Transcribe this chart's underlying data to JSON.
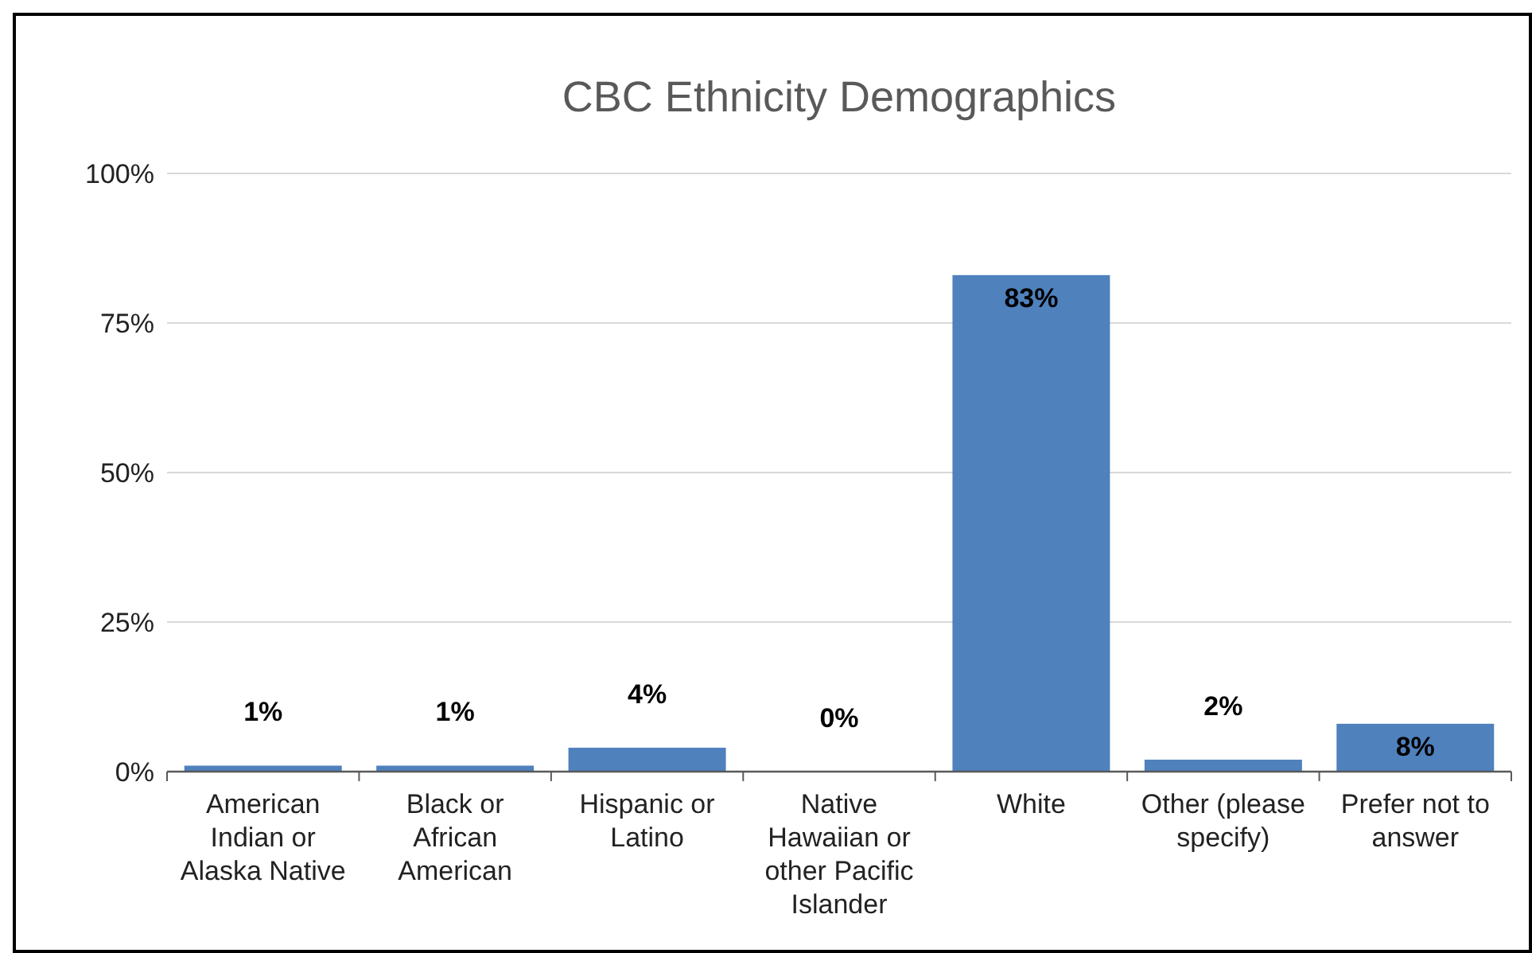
{
  "chart_data": {
    "type": "bar",
    "title": "CBC Ethnicity Demographics",
    "categories": [
      "American Indian or Alaska Native",
      "Black or African American",
      "Hispanic or Latino",
      "Native Hawaiian or other Pacific Islander",
      "White",
      "Other (please specify)",
      "Prefer not to answer"
    ],
    "values": [
      1,
      1,
      4,
      0,
      83,
      2,
      8
    ],
    "value_labels": [
      "1%",
      "1%",
      "4%",
      "0%",
      "83%",
      "2%",
      "8%"
    ],
    "color": "#4f81bd",
    "ylim": [
      0,
      100
    ],
    "yticks": [
      {
        "value": 0,
        "label": "0%"
      },
      {
        "value": 25,
        "label": "25%"
      },
      {
        "value": 50,
        "label": "50%"
      },
      {
        "value": 75,
        "label": "75%"
      },
      {
        "value": 100,
        "label": "100%"
      }
    ],
    "grid": "y"
  }
}
